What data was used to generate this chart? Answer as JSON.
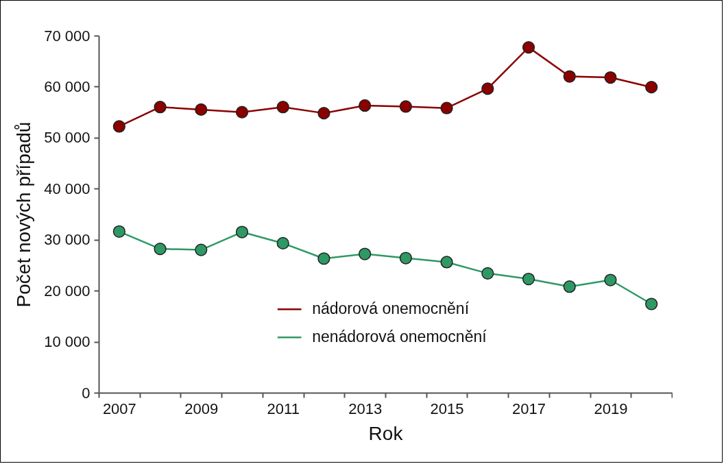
{
  "chart_data": {
    "type": "line",
    "xlabel": "Rok",
    "ylabel": "Počet nových případů",
    "categories": [
      "2007",
      null,
      "2009",
      null,
      "2011",
      null,
      "2013",
      null,
      "2015",
      null,
      "2017",
      null,
      "2019",
      null
    ],
    "series": [
      {
        "name": "nádorová onemocnění",
        "color": "#8b0000",
        "values": [
          52200,
          56000,
          55500,
          55000,
          56000,
          54800,
          56300,
          56100,
          55800,
          59600,
          67700,
          62000,
          61800,
          59900
        ]
      },
      {
        "name": "nenádorová onemocnění",
        "color": "#2e9964",
        "values": [
          31600,
          28200,
          28000,
          31500,
          29300,
          26300,
          27200,
          26400,
          25600,
          23400,
          22300,
          20800,
          22100,
          17400
        ]
      }
    ],
    "ylim": [
      0,
      70000
    ],
    "yticks": [
      0,
      {
        "value": 10000,
        "label": "10 000"
      },
      {
        "value": 20000,
        "label": "20 000"
      },
      {
        "value": 30000,
        "label": "30 000"
      },
      {
        "value": 40000,
        "label": "40 000"
      },
      {
        "value": 50000,
        "label": "50 000"
      },
      {
        "value": 60000,
        "label": "60 000"
      },
      {
        "value": 70000,
        "label": "70 000"
      }
    ],
    "grid": false,
    "legend": "bottom",
    "marker": "circle",
    "line_style": "solid"
  }
}
